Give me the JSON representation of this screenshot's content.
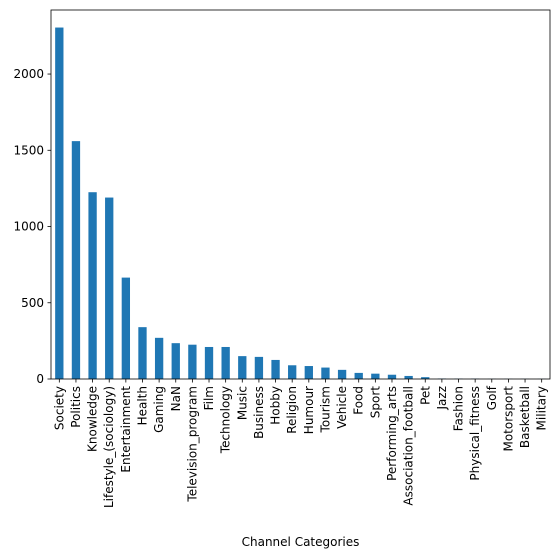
{
  "chart_data": {
    "type": "bar",
    "xlabel": "Channel Categories",
    "ylabel": "",
    "ylim": [
      0,
      2420
    ],
    "yticks": [
      0,
      500,
      1000,
      1500,
      2000
    ],
    "grid": false,
    "bar_color": "#1f77b4",
    "categories": [
      "Society",
      "Politics",
      "Knowledge",
      "Lifestyle_(sociology)",
      "Entertainment",
      "Health",
      "Gaming",
      "NaN",
      "Television_program",
      "Film",
      "Technology",
      "Music",
      "Business",
      "Hobby",
      "Religion",
      "Humour",
      "Tourism",
      "Vehicle",
      "Food",
      "Sport",
      "Performing_arts",
      "Association_football",
      "Pet",
      "Jazz",
      "Fashion",
      "Physical_fitness",
      "Golf",
      "Motorsport",
      "Basketball",
      "Military"
    ],
    "values": [
      2305,
      1560,
      1225,
      1190,
      665,
      340,
      270,
      235,
      225,
      210,
      210,
      150,
      145,
      125,
      90,
      85,
      75,
      60,
      40,
      35,
      28,
      20,
      12,
      3,
      2,
      2,
      1,
      1,
      1,
      1
    ]
  }
}
